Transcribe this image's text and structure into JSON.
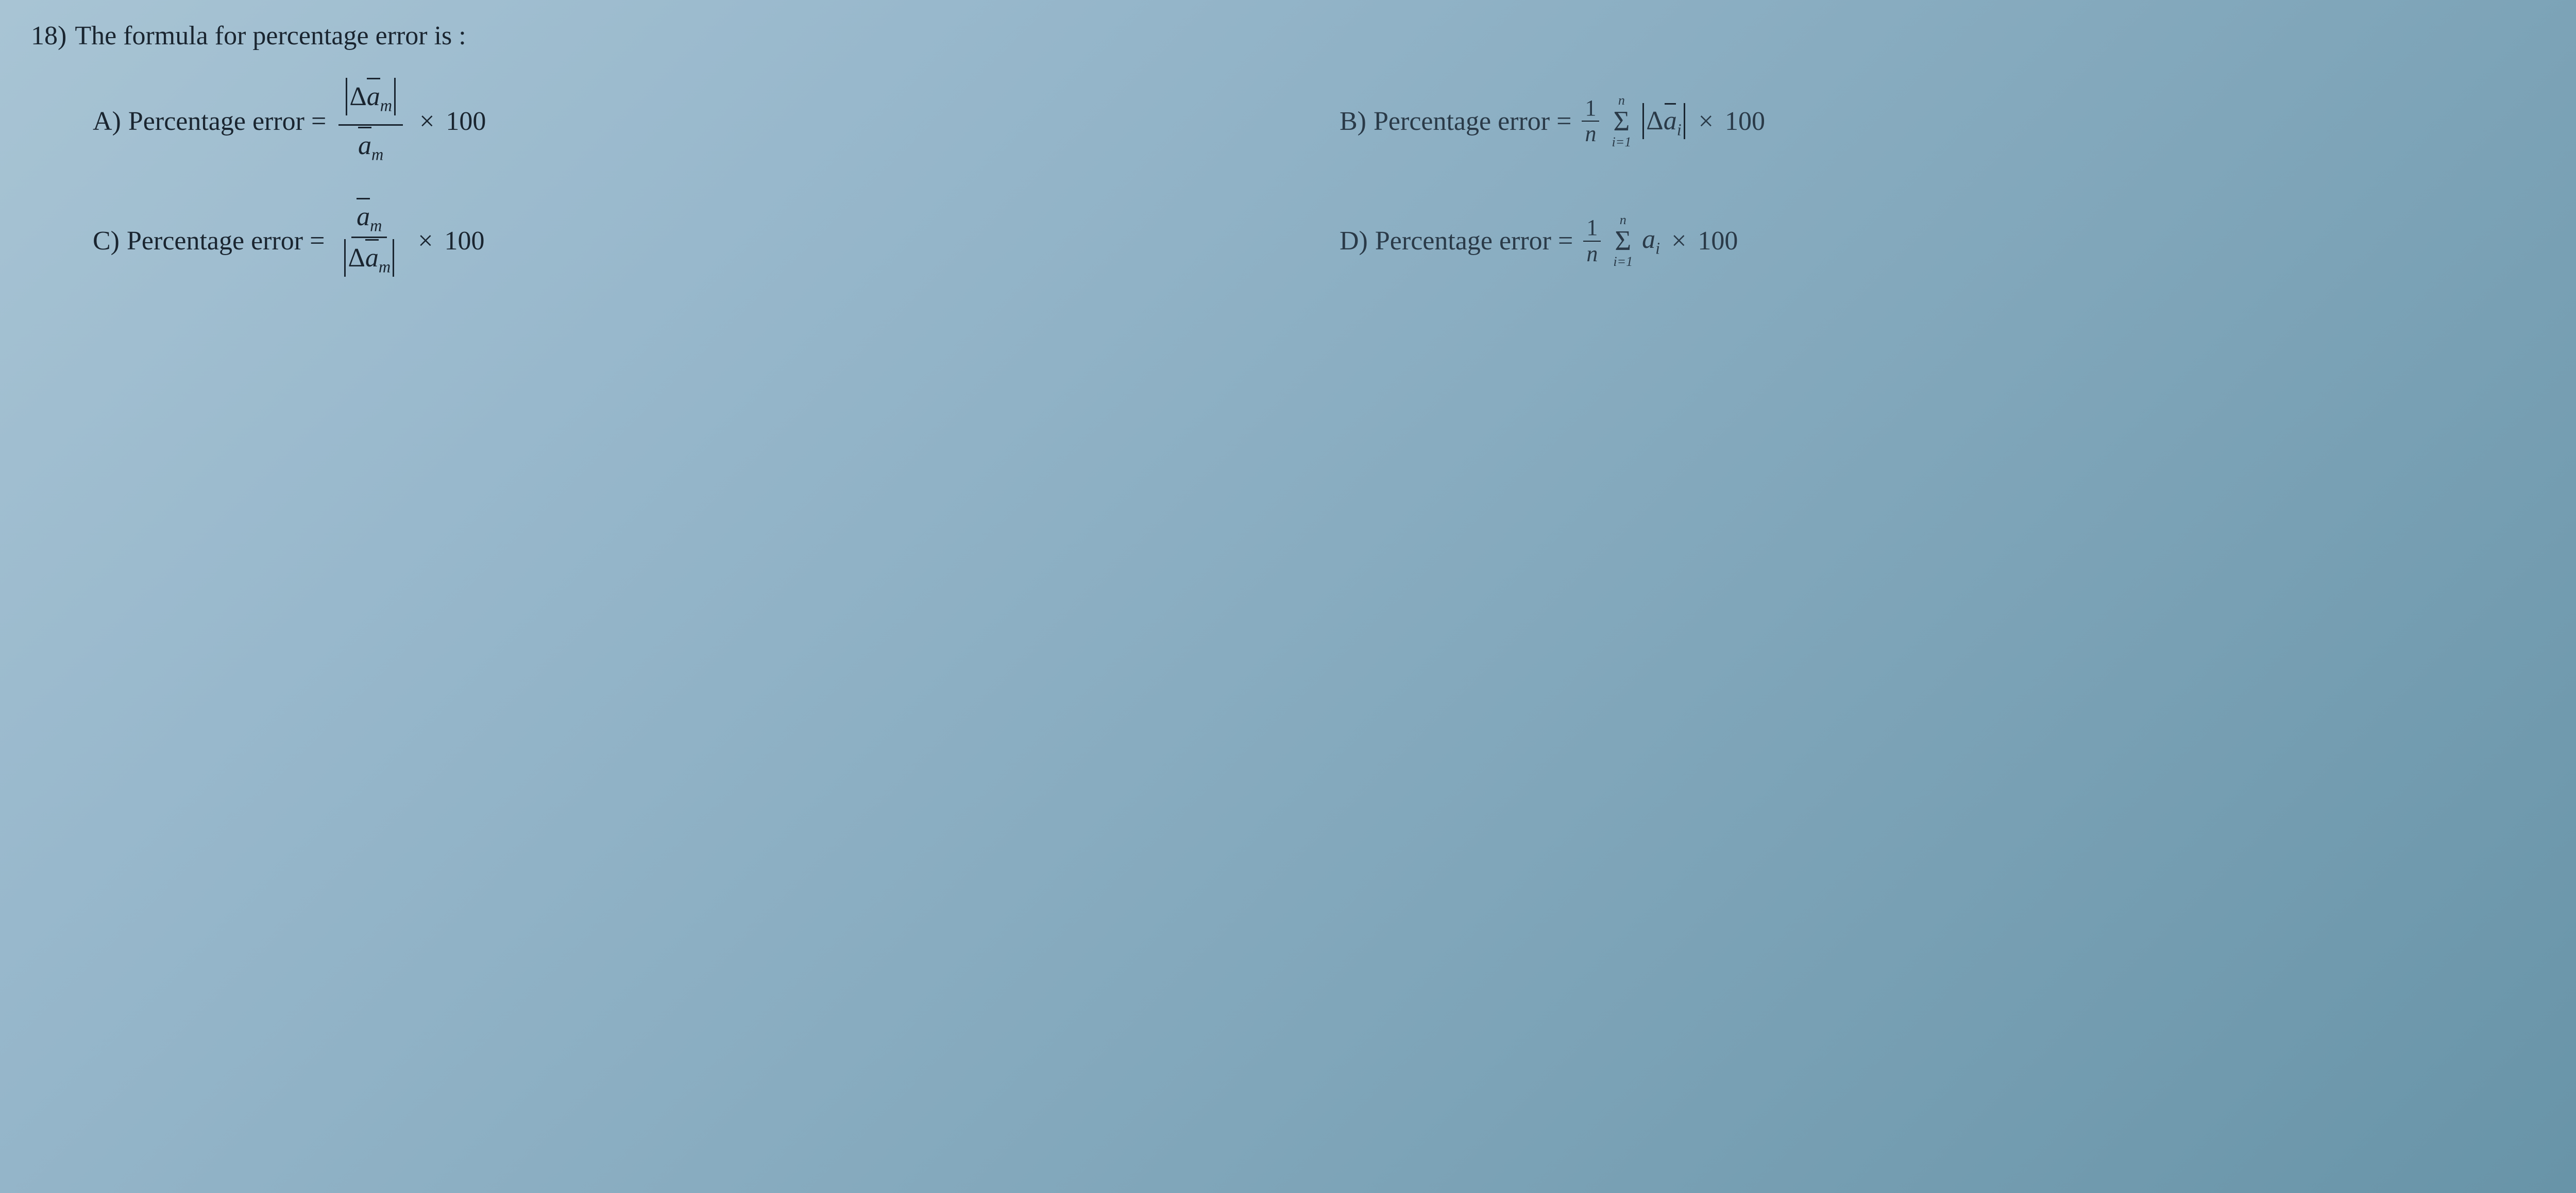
{
  "question": {
    "number": "18)",
    "text": "The formula for percentage error is :"
  },
  "options": {
    "A": {
      "label": "A)",
      "text": "Percentage error ="
    },
    "B": {
      "label": "B)",
      "text": "Percentage error ="
    },
    "C": {
      "label": "C)",
      "text": "Percentage error ="
    },
    "D": {
      "label": "D)",
      "text": "Percentage error ="
    }
  },
  "symbols": {
    "Delta": "Δ",
    "a": "a",
    "m": "m",
    "i": "i",
    "n_var": "n",
    "Sigma": "Σ",
    "times": "×",
    "hundred": "100",
    "one": "1",
    "sum_lower": "i=1",
    "sum_upper": "n"
  },
  "colors": {
    "text": "#1a2530",
    "bg_start": "#a8c4d4",
    "bg_end": "#6894a8"
  }
}
